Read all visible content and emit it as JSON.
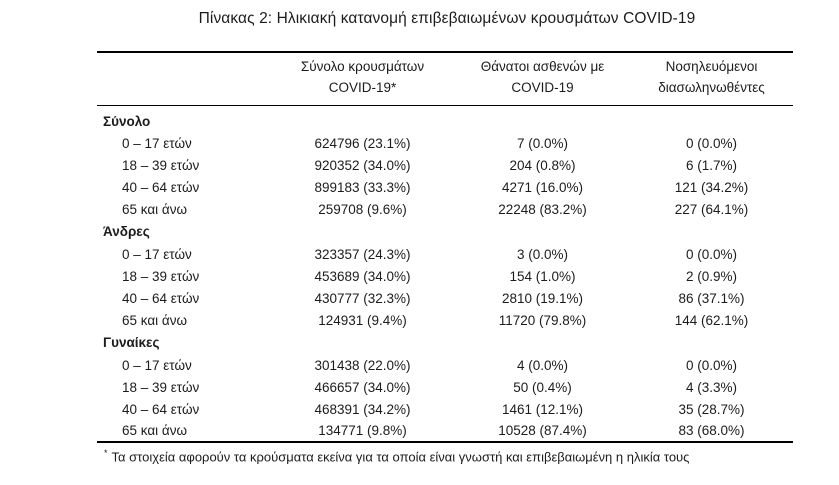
{
  "title": "Πίνακας 2: Ηλικιακή κατανομή επιβεβαιωμένων κρουσμάτων COVID-19",
  "table": {
    "columns": [
      {
        "line1": "",
        "line2": ""
      },
      {
        "line1": "Σύνολο κρουσμάτων",
        "line2": "COVID-19*"
      },
      {
        "line1": "Θάνατοι ασθενών με",
        "line2": "COVID-19"
      },
      {
        "line1": "Νοσηλευόμενοι",
        "line2": "διασωληνωθέντες"
      }
    ],
    "sections": [
      {
        "label": "Σύνολο",
        "rows": [
          {
            "label": "0 – 17 ετών",
            "cases": "624796 (23.1%)",
            "deaths": "7 (0.0%)",
            "intubated": "0 (0.0%)"
          },
          {
            "label": "18 – 39 ετών",
            "cases": "920352 (34.0%)",
            "deaths": "204 (0.8%)",
            "intubated": "6 (1.7%)"
          },
          {
            "label": "40 – 64 ετών",
            "cases": "899183 (33.3%)",
            "deaths": "4271 (16.0%)",
            "intubated": "121 (34.2%)"
          },
          {
            "label": "65 και άνω",
            "cases": "259708 (9.6%)",
            "deaths": "22248 (83.2%)",
            "intubated": "227 (64.1%)"
          }
        ]
      },
      {
        "label": "Άνδρες",
        "rows": [
          {
            "label": "0 – 17 ετών",
            "cases": "323357 (24.3%)",
            "deaths": "3 (0.0%)",
            "intubated": "0 (0.0%)"
          },
          {
            "label": "18 – 39 ετών",
            "cases": "453689 (34.0%)",
            "deaths": "154 (1.0%)",
            "intubated": "2 (0.9%)"
          },
          {
            "label": "40 – 64 ετών",
            "cases": "430777 (32.3%)",
            "deaths": "2810 (19.1%)",
            "intubated": "86 (37.1%)"
          },
          {
            "label": "65 και άνω",
            "cases": "124931 (9.4%)",
            "deaths": "11720 (79.8%)",
            "intubated": "144 (62.1%)"
          }
        ]
      },
      {
        "label": "Γυναίκες",
        "rows": [
          {
            "label": "0 – 17 ετών",
            "cases": "301438 (22.0%)",
            "deaths": "4 (0.0%)",
            "intubated": "0 (0.0%)"
          },
          {
            "label": "18 – 39 ετών",
            "cases": "466657 (34.0%)",
            "deaths": "50 (0.4%)",
            "intubated": "4 (3.3%)"
          },
          {
            "label": "40 – 64 ετών",
            "cases": "468391 (34.2%)",
            "deaths": "1461 (12.1%)",
            "intubated": "35 (28.7%)"
          },
          {
            "label": "65 και άνω",
            "cases": "134771 (9.8%)",
            "deaths": "10528 (87.4%)",
            "intubated": "83 (68.0%)"
          }
        ]
      }
    ],
    "footnote_marker": "*",
    "footnote": "Τα στοιχεία αφορούν τα κρούσματα εκείνα για τα οποία είναι γνωστή και επιβεβαιωμένη η ηλικία τους"
  }
}
